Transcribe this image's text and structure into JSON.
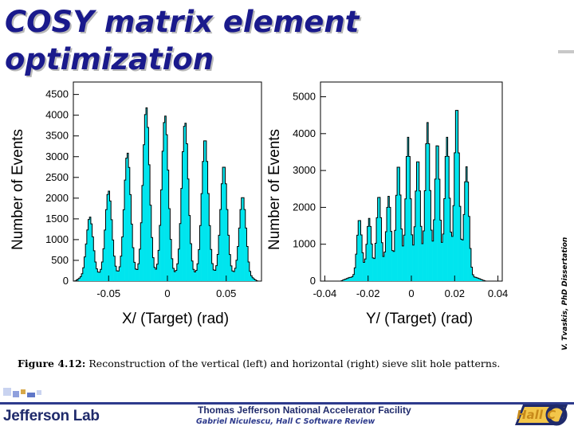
{
  "slide": {
    "title_line1": "COSY matrix element",
    "title_line2": "optimization",
    "credit": "V. Tvaskis, PhD Dissertation",
    "caption_label": "Figure 4.12:",
    "caption_text": " Reconstruction of the vertical (left) and horizontal (right) sieve slit hole patterns.",
    "footer_lab": "Thomas Jefferson National Accelerator Facility",
    "footer_text": "Gabriel Niculescu, Hall C Software Review",
    "logo_left_text": "Jefferson Lab",
    "logo_right_text": "Hall C"
  },
  "colors": {
    "title": "#1a1a8c",
    "fill": "#00e5ee",
    "outline": "#000000",
    "footer": "#2d3a8c"
  },
  "chart_data": [
    {
      "type": "histogram",
      "xlabel": "X/ (Target) (rad)",
      "ylabel": "Number of Events",
      "xlim": [
        -0.08,
        0.08
      ],
      "ylim": [
        0,
        4800
      ],
      "xticks": [
        -0.05,
        0,
        0.05
      ],
      "xtick_labels": [
        "-0.05",
        "0",
        "0.05"
      ],
      "yticks": [
        0,
        500,
        1000,
        1500,
        2000,
        2500,
        3000,
        3500,
        4000,
        4500
      ],
      "peaks": [
        {
          "x": -0.066,
          "y": 1550,
          "w": 0.0028
        },
        {
          "x": -0.05,
          "y": 2180,
          "w": 0.0028
        },
        {
          "x": -0.034,
          "y": 3100,
          "w": 0.0028
        },
        {
          "x": -0.018,
          "y": 4200,
          "w": 0.0028
        },
        {
          "x": -0.002,
          "y": 4000,
          "w": 0.0028
        },
        {
          "x": 0.015,
          "y": 3850,
          "w": 0.0028
        },
        {
          "x": 0.032,
          "y": 3450,
          "w": 0.0028
        },
        {
          "x": 0.048,
          "y": 2800,
          "w": 0.0028
        },
        {
          "x": 0.064,
          "y": 2050,
          "w": 0.0028
        }
      ],
      "baseline": 150
    },
    {
      "type": "histogram",
      "xlabel": "Y/ (Target) (rad)",
      "ylabel": "Number of Events",
      "xlim": [
        -0.042,
        0.042
      ],
      "ylim": [
        0,
        5400
      ],
      "xticks": [
        -0.04,
        -0.02,
        0,
        0.02,
        0.04
      ],
      "xtick_labels": [
        "-0.04",
        "-0.02",
        "0",
        "0.02",
        "0.04"
      ],
      "yticks": [
        0,
        1000,
        2000,
        3000,
        4000,
        5000
      ],
      "peaks": [
        {
          "x": -0.024,
          "y": 1700,
          "w": 0.0011
        },
        {
          "x": -0.0195,
          "y": 1700,
          "w": 0.0011
        },
        {
          "x": -0.015,
          "y": 2350,
          "w": 0.0011
        },
        {
          "x": -0.0105,
          "y": 2300,
          "w": 0.0011
        },
        {
          "x": -0.006,
          "y": 3200,
          "w": 0.0011
        },
        {
          "x": -0.0015,
          "y": 3900,
          "w": 0.0011
        },
        {
          "x": 0.003,
          "y": 3350,
          "w": 0.0011
        },
        {
          "x": 0.0075,
          "y": 4300,
          "w": 0.0011
        },
        {
          "x": 0.012,
          "y": 3800,
          "w": 0.0011
        },
        {
          "x": 0.0165,
          "y": 3900,
          "w": 0.0011
        },
        {
          "x": 0.021,
          "y": 4800,
          "w": 0.0011
        },
        {
          "x": 0.0255,
          "y": 3100,
          "w": 0.0011
        }
      ],
      "baseline": 100
    }
  ]
}
